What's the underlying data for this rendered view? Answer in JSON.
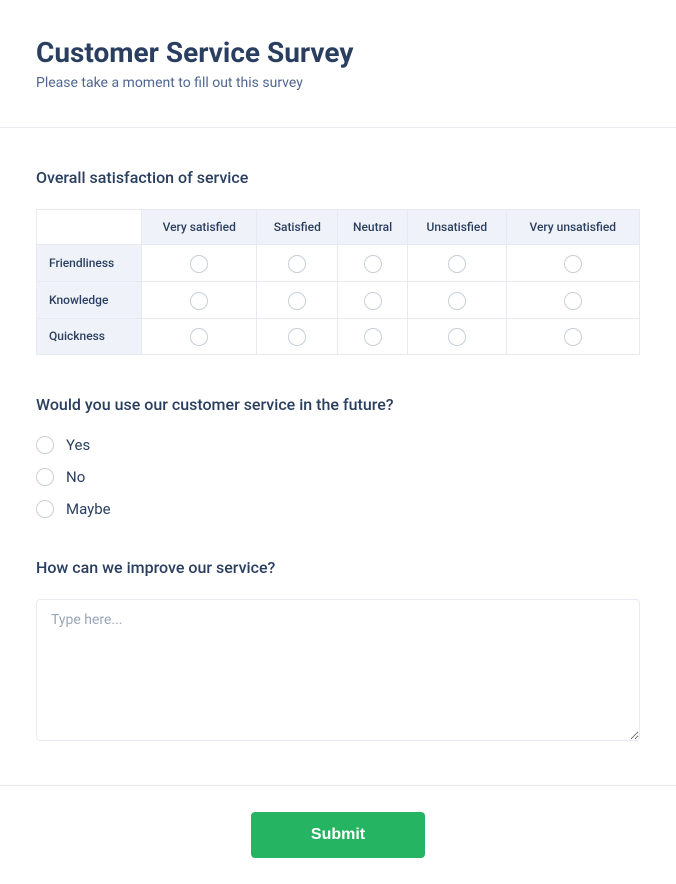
{
  "header": {
    "title": "Customer Service Survey",
    "subtitle": "Please take a moment to fill out this survey"
  },
  "satisfaction": {
    "title": "Overall satisfaction of service",
    "columns": [
      "Very satisfied",
      "Satisfied",
      "Neutral",
      "Unsatisfied",
      "Very unsatisfied"
    ],
    "rows": [
      "Friendliness",
      "Knowledge",
      "Quickness"
    ]
  },
  "future_use": {
    "title": "Would you use our customer service in the future?",
    "options": [
      "Yes",
      "No",
      "Maybe"
    ]
  },
  "feedback": {
    "title": "How can we improve our service?",
    "placeholder": "Type here..."
  },
  "actions": {
    "submit_label": "Submit"
  },
  "style": {
    "accent_color": "#25b562",
    "border_color": "#e7eaf3",
    "header_bg": "#eff2f9",
    "text_color": "#2a3f5f",
    "muted_color": "#9aa6b8"
  }
}
